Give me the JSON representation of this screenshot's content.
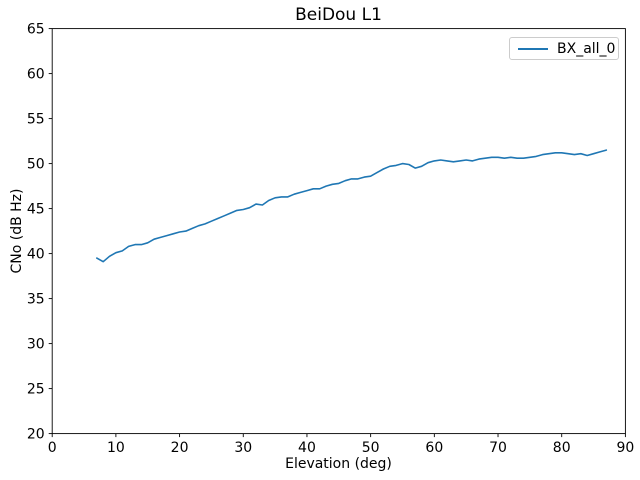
{
  "figure": {
    "background": "#ffffff",
    "text_color": "#000000"
  },
  "legend": {
    "entries": [
      {
        "label": "BX_all_0",
        "color": "#1f77b4"
      }
    ],
    "border_color": "#cccccc"
  },
  "chart_data": {
    "type": "line",
    "title": "BeiDou L1",
    "xlabel": "Elevation (deg)",
    "ylabel": "CNo (dB Hz)",
    "xlim": [
      0,
      90
    ],
    "ylim": [
      20,
      65
    ],
    "xticks": [
      0,
      10,
      20,
      30,
      40,
      50,
      60,
      70,
      80,
      90
    ],
    "yticks": [
      20,
      25,
      30,
      35,
      40,
      45,
      50,
      55,
      60,
      65
    ],
    "grid": false,
    "legend_position": "upper right",
    "series": [
      {
        "name": "BX_all_0",
        "color": "#1f77b4",
        "x": [
          7,
          8,
          9,
          10,
          11,
          12,
          13,
          14,
          15,
          16,
          17,
          18,
          19,
          20,
          21,
          22,
          23,
          24,
          25,
          26,
          27,
          28,
          29,
          30,
          31,
          32,
          33,
          34,
          35,
          36,
          37,
          38,
          39,
          40,
          41,
          42,
          43,
          44,
          45,
          46,
          47,
          48,
          49,
          50,
          51,
          52,
          53,
          54,
          55,
          56,
          57,
          58,
          59,
          60,
          61,
          62,
          63,
          64,
          65,
          66,
          67,
          68,
          69,
          70,
          71,
          72,
          73,
          74,
          75,
          76,
          77,
          78,
          79,
          80,
          81,
          82,
          83,
          84,
          85,
          86,
          87
        ],
        "y": [
          39.5,
          39.1,
          39.7,
          40.1,
          40.3,
          40.8,
          41.0,
          41.0,
          41.2,
          41.6,
          41.8,
          42.0,
          42.2,
          42.4,
          42.5,
          42.8,
          43.1,
          43.3,
          43.6,
          43.9,
          44.2,
          44.5,
          44.8,
          44.9,
          45.1,
          45.5,
          45.4,
          45.9,
          46.2,
          46.3,
          46.3,
          46.6,
          46.8,
          47.0,
          47.2,
          47.2,
          47.5,
          47.7,
          47.8,
          48.1,
          48.3,
          48.3,
          48.5,
          48.6,
          49.0,
          49.4,
          49.7,
          49.8,
          50.0,
          49.9,
          49.5,
          49.7,
          50.1,
          50.3,
          50.4,
          50.3,
          50.2,
          50.3,
          50.4,
          50.3,
          50.5,
          50.6,
          50.7,
          50.7,
          50.6,
          50.7,
          50.6,
          50.6,
          50.7,
          50.8,
          51.0,
          51.1,
          51.2,
          51.2,
          51.1,
          51.0,
          51.1,
          50.9,
          51.1,
          51.3,
          51.5
        ]
      }
    ]
  }
}
